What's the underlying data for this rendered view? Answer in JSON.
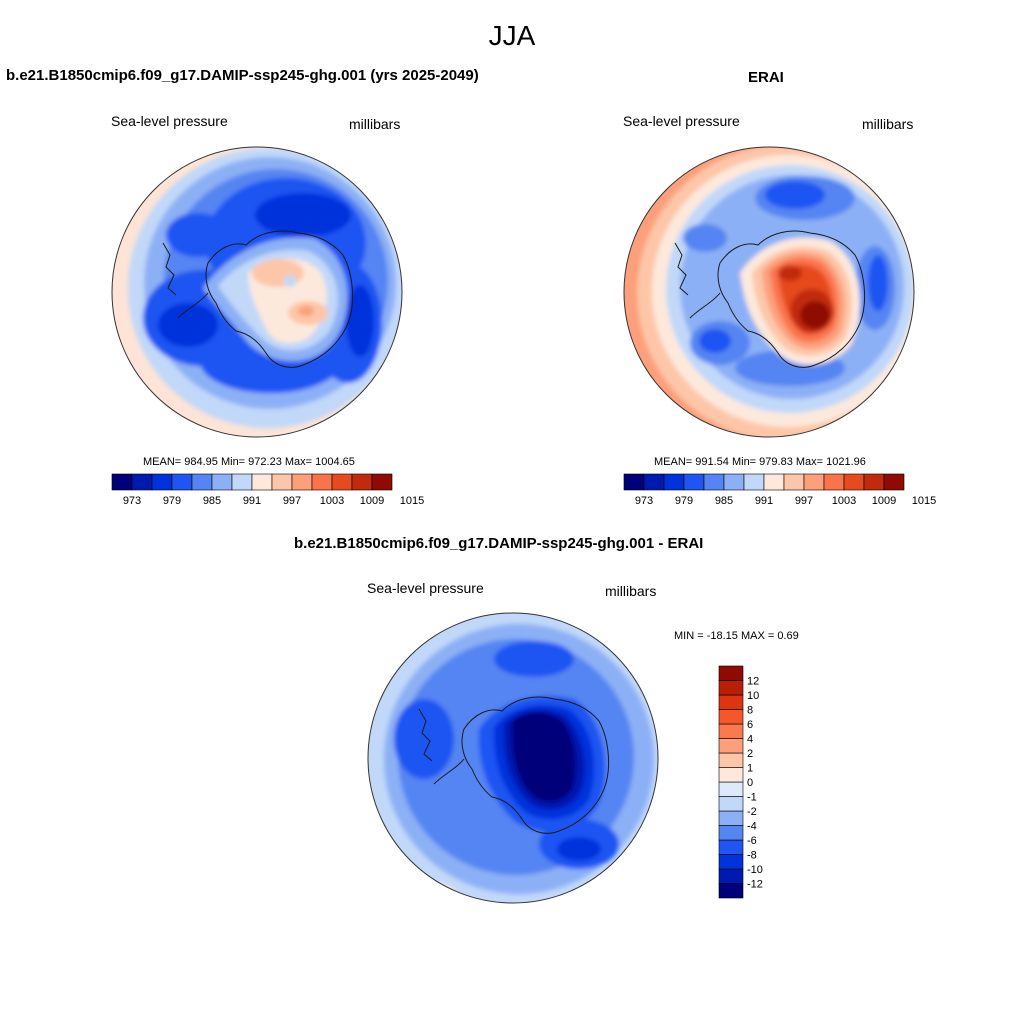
{
  "figure": {
    "title": "JJA"
  },
  "panels": {
    "model": {
      "title": "b.e21.B1850cmip6.f09_g17.DAMIP-ssp245-ghg.001 (yrs 2025-2049)",
      "left_label": "Sea-level pressure",
      "right_label": "millibars",
      "stats": "MEAN= 984.95   Min= 972.23   Max= 1004.65"
    },
    "obs": {
      "title": "ERAI",
      "left_label": "Sea-level pressure",
      "right_label": "millibars",
      "stats": "MEAN= 991.54   Min= 979.83   Max= 1021.96"
    },
    "diff": {
      "title": "b.e21.B1850cmip6.f09_g17.DAMIP-ssp245-ghg.001 - ERAI",
      "left_label": "Sea-level pressure",
      "right_label": "millibars",
      "minmax": "MIN = -18.15 MAX =   0.69"
    }
  },
  "colorbars": {
    "slp": {
      "colors": [
        "#00007a",
        "#0019b0",
        "#0032dc",
        "#1f55f2",
        "#5585f2",
        "#8cb0f5",
        "#c1d8f9",
        "#fde9dc",
        "#fdc6a8",
        "#fc9f7a",
        "#fa734c",
        "#e64a1f",
        "#c22a0d",
        "#8f0a00"
      ],
      "tick_labels": [
        "973",
        "979",
        "985",
        "991",
        "997",
        "1003",
        "1009",
        "1015"
      ]
    },
    "diff": {
      "colors": [
        "#00007a",
        "#0019b0",
        "#0032dc",
        "#1f55f2",
        "#5585f2",
        "#8cb0f5",
        "#c1d8f9",
        "#ddeafc",
        "#fde9dc",
        "#fdc6a8",
        "#fca07a",
        "#fa7a50",
        "#f5562a",
        "#dc3510",
        "#b81f05",
        "#8f0a00"
      ],
      "tick_labels": [
        "-12",
        "-10",
        "-8",
        "-6",
        "-4",
        "-2",
        "-1",
        "0",
        "1",
        "2",
        "4",
        "6",
        "8",
        "10",
        "12"
      ]
    }
  },
  "chart_data": [
    {
      "type": "heatmap",
      "projection": "south polar stereographic",
      "title": "b.e21.B1850cmip6.f09_g17.DAMIP-ssp245-ghg.001 (yrs 2025-2049)",
      "variable": "Sea-level pressure",
      "units": "millibars",
      "mean": 984.95,
      "min": 972.23,
      "max": 1004.65,
      "contour_levels": [
        973,
        976,
        979,
        982,
        985,
        988,
        991,
        994,
        997,
        1000,
        1003,
        1006,
        1009,
        1012,
        1015
      ]
    },
    {
      "type": "heatmap",
      "projection": "south polar stereographic",
      "title": "ERAI",
      "variable": "Sea-level pressure",
      "units": "millibars",
      "mean": 991.54,
      "min": 979.83,
      "max": 1021.96,
      "contour_levels": [
        973,
        976,
        979,
        982,
        985,
        988,
        991,
        994,
        997,
        1000,
        1003,
        1006,
        1009,
        1012,
        1015
      ]
    },
    {
      "type": "heatmap",
      "projection": "south polar stereographic",
      "title": "b.e21.B1850cmip6.f09_g17.DAMIP-ssp245-ghg.001 - ERAI",
      "variable": "Sea-level pressure",
      "units": "millibars",
      "min": -18.15,
      "max": 0.69,
      "contour_levels": [
        -12,
        -10,
        -8,
        -6,
        -4,
        -2,
        -1,
        0,
        1,
        2,
        4,
        6,
        8,
        10,
        12
      ]
    }
  ]
}
